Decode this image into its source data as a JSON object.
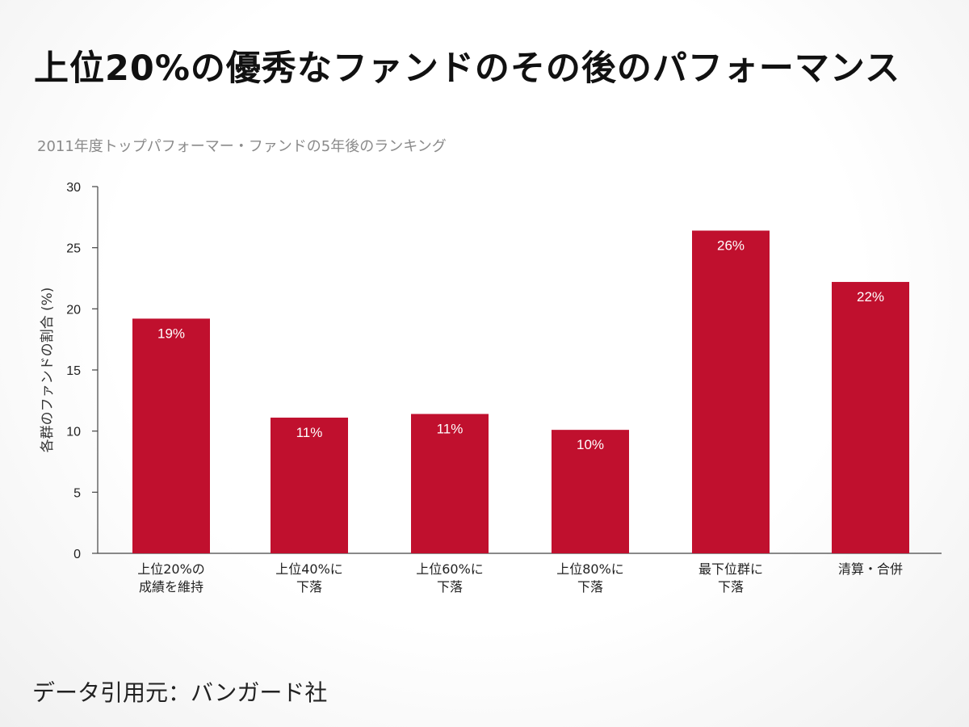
{
  "page": {
    "title": "上位20%の優秀なファンドのその後のパフォーマンス",
    "source": "データ引用元：バンガード社"
  },
  "colors": {
    "bar": "#c0102e",
    "axis": "#444444",
    "tick_text": "#222222",
    "value_label": "#ffffff",
    "subtitle": "#8a8a8a"
  },
  "chart_data": {
    "type": "bar",
    "title": "2011年度トップパフォーマー・ファンドの5年後のランキング",
    "ylabel": "各群のファンドの割合 (%)",
    "xlabel": "",
    "ylim": [
      0,
      30
    ],
    "yticks": [
      0,
      5,
      10,
      15,
      20,
      25,
      30
    ],
    "grid": false,
    "categories": [
      [
        "上位20%の",
        "成績を維持"
      ],
      [
        "上位40%に",
        "下落"
      ],
      [
        "上位60%に",
        "下落"
      ],
      [
        "上位80%に",
        "下落"
      ],
      [
        "最下位群に",
        "下落"
      ],
      [
        "清算・合併"
      ]
    ],
    "values": [
      19.2,
      11.1,
      11.4,
      10.1,
      26.4,
      22.2
    ],
    "data_labels": [
      "19%",
      "11%",
      "11%",
      "10%",
      "26%",
      "22%"
    ]
  }
}
